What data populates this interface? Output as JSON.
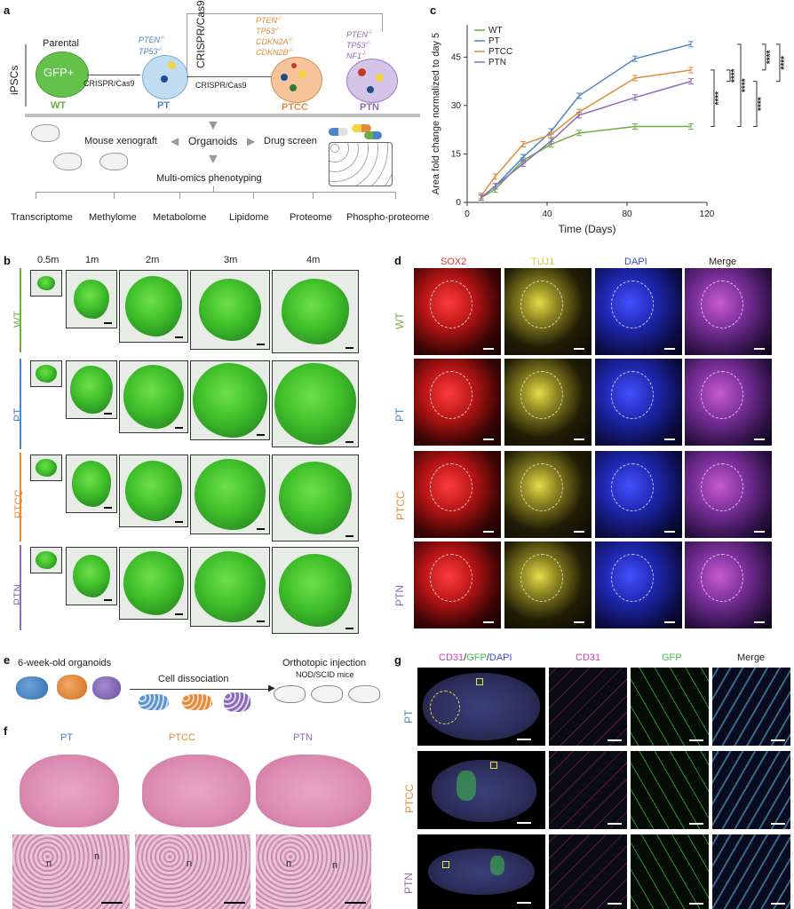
{
  "panel_a": {
    "letter": "a",
    "side_label": "iPSCs",
    "parental_label": "Parental",
    "gfp_label": "GFP+",
    "crispr1": "CRISPR/Cas9",
    "crispr2": "CRISPR/Cas9",
    "crispr3": "CRISPR/Cas9",
    "wt": "WT",
    "pt": "PT",
    "ptcc": "PTCC",
    "ptn": "PTN",
    "pt_genes": [
      "PTEN",
      "TP53"
    ],
    "ptcc_genes": [
      "PTEN",
      "TP53",
      "CDKN2A",
      "CDKN2B"
    ],
    "ptn_genes": [
      "PTEN",
      "TP53",
      "NF1"
    ],
    "ko_sup": "-/-",
    "mouse_xenograft": "Mouse xenograft",
    "organoids": "Organoids",
    "drug_screen": "Drug screen",
    "multi_omics": "Multi-omics phenotyping",
    "omics": [
      "Transcriptome",
      "Methylome",
      "Metabolome",
      "Lipidome",
      "Proteome",
      "Phospho-proteome"
    ]
  },
  "panel_b": {
    "letter": "b",
    "timepoints": [
      "0.5m",
      "1m",
      "2m",
      "3m",
      "4m"
    ],
    "rows": [
      "WT",
      "PT",
      "PTCC",
      "PTN"
    ]
  },
  "panel_c": {
    "letter": "c",
    "stars": "****"
  },
  "panel_d": {
    "letter": "d",
    "columns": [
      "SOX2",
      "TUJ1",
      "DAPI",
      "Merge"
    ],
    "rows": [
      "WT",
      "PT",
      "PTCC",
      "PTN"
    ]
  },
  "panel_e": {
    "letter": "e",
    "organoids_label": "6-week-old organoids",
    "dissociation": "Cell dissociation",
    "injection": "Orthotopic injection",
    "mice": "NOD/SCID mice"
  },
  "panel_f": {
    "letter": "f",
    "columns": [
      "PT",
      "PTCC",
      "PTN"
    ],
    "n_label": "n"
  },
  "panel_g": {
    "letter": "g",
    "header_cd31": "CD31",
    "header_gfp": "GFP",
    "header_dapi": "DAPI",
    "slash": "/",
    "columns": [
      "CD31",
      "GFP",
      "Merge"
    ],
    "rows": [
      "PT",
      "PTCC",
      "PTN"
    ]
  },
  "colors": {
    "wt": "#6bae45",
    "pt": "#4a86c5",
    "ptcc": "#e38b3a",
    "ptn": "#8a6bb5",
    "sox2": "#e03131",
    "tuj1": "#d6c93a",
    "dapi": "#3b47e0",
    "cd31": "#d43bb5",
    "gfp": "#3fbf4a"
  },
  "chart_data": {
    "type": "line",
    "title": "",
    "xlabel": "Time (Days)",
    "ylabel": "Area fold change normalized to day 5",
    "xlim": [
      0,
      120
    ],
    "ylim": [
      0,
      55
    ],
    "xticks": [
      0,
      40,
      80,
      120
    ],
    "yticks": [
      0,
      15,
      30,
      45
    ],
    "yticklabels": [
      "0",
      "15",
      "30",
      "45"
    ],
    "x": [
      7,
      14,
      28,
      42,
      56,
      84,
      112
    ],
    "series": [
      {
        "name": "WT",
        "color": "#6bae45",
        "values": [
          1.5,
          4,
          13,
          18,
          21.5,
          23.5,
          23.5
        ]
      },
      {
        "name": "PT",
        "color": "#4a86c5",
        "values": [
          1.5,
          5,
          14,
          22,
          33,
          44.5,
          49
        ]
      },
      {
        "name": "PTCC",
        "color": "#e38b3a",
        "values": [
          2,
          8,
          18,
          21,
          28,
          38.5,
          41
        ]
      },
      {
        "name": "PTN",
        "color": "#8a6bb5",
        "values": [
          1.5,
          5,
          12,
          19,
          27,
          32.5,
          37.5
        ]
      }
    ],
    "legend": "top-left",
    "significance": "****"
  }
}
